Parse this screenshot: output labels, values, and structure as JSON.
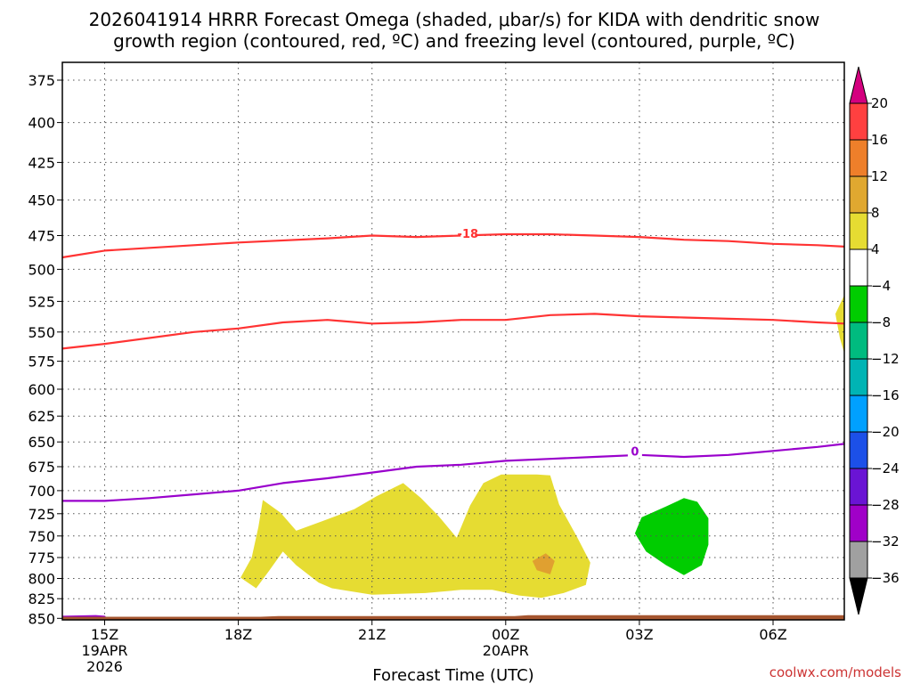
{
  "title_line1": "2026041914 HRRR Forecast Omega (shaded, μbar/s) for KIDA with dendritic snow",
  "title_line2": "growth region (contoured, red, ºC) and freezing level (contoured, purple, ºC)",
  "credit": "coolwx.com/models",
  "chart_data": {
    "type": "time-height contour",
    "xlabel": "Forecast Time (UTC)",
    "x_range_hours": [
      -0.95,
      16.6
    ],
    "y_range_hPa": [
      852,
      365
    ],
    "y_ticks": [
      375,
      400,
      425,
      450,
      475,
      500,
      525,
      550,
      575,
      600,
      625,
      650,
      675,
      700,
      725,
      750,
      775,
      800,
      825,
      850
    ],
    "x_ticks": [
      {
        "hour": 0,
        "lines": [
          "15Z",
          "19APR",
          "2026"
        ]
      },
      {
        "hour": 3,
        "lines": [
          "18Z"
        ]
      },
      {
        "hour": 6,
        "lines": [
          "21Z"
        ]
      },
      {
        "hour": 9,
        "lines": [
          "00Z",
          "20APR"
        ]
      },
      {
        "hour": 12,
        "lines": [
          "03Z"
        ]
      },
      {
        "hour": 15,
        "lines": [
          "06Z"
        ]
      }
    ],
    "contours": [
      {
        "label": "-18",
        "label_at": [
          8.15,
          474
        ],
        "color": "#ff3333",
        "points": [
          [
            -0.95,
            491
          ],
          [
            0,
            486
          ],
          [
            2,
            482
          ],
          [
            3,
            480
          ],
          [
            5,
            477
          ],
          [
            6,
            475
          ],
          [
            7,
            476
          ],
          [
            8,
            475
          ],
          [
            9,
            474
          ],
          [
            10,
            474
          ],
          [
            11,
            475
          ],
          [
            12,
            476
          ],
          [
            13,
            478
          ],
          [
            14,
            479
          ],
          [
            15,
            481
          ],
          [
            16,
            482
          ],
          [
            16.6,
            483
          ]
        ]
      },
      {
        "label": "",
        "color": "#ff3333",
        "points": [
          [
            -0.95,
            564
          ],
          [
            0,
            560
          ],
          [
            1,
            555
          ],
          [
            2,
            550
          ],
          [
            3,
            547
          ],
          [
            4,
            542
          ],
          [
            5,
            540
          ],
          [
            6,
            543
          ],
          [
            7,
            542
          ],
          [
            8,
            540
          ],
          [
            9,
            540
          ],
          [
            10,
            536
          ],
          [
            11,
            535
          ],
          [
            12,
            537
          ],
          [
            13,
            538
          ],
          [
            14,
            539
          ],
          [
            15,
            540
          ],
          [
            16,
            542
          ],
          [
            16.6,
            543
          ]
        ]
      },
      {
        "label": "0",
        "label_at": [
          11.9,
          660
        ],
        "color": "#9900cc",
        "points": [
          [
            -0.95,
            711
          ],
          [
            0,
            711
          ],
          [
            1,
            708
          ],
          [
            2,
            704
          ],
          [
            3,
            700
          ],
          [
            4,
            692
          ],
          [
            5,
            687
          ],
          [
            6,
            681
          ],
          [
            7,
            675
          ],
          [
            8,
            673
          ],
          [
            9,
            669
          ],
          [
            10,
            667
          ],
          [
            11,
            665
          ],
          [
            12,
            663
          ],
          [
            13,
            665
          ],
          [
            14,
            663
          ],
          [
            15,
            659
          ],
          [
            16,
            655
          ],
          [
            16.6,
            652
          ]
        ]
      },
      {
        "label": "",
        "color": "#9900cc",
        "points": [
          [
            -0.95,
            848
          ],
          [
            -0.2,
            847
          ],
          [
            0,
            848
          ],
          [
            -0.2,
            851
          ]
        ]
      }
    ],
    "shaded_regions": [
      {
        "omega": "4 to 8",
        "color": "#e6dc32",
        "points": [
          [
            3.55,
            710
          ],
          [
            3.95,
            724
          ],
          [
            4.3,
            744
          ],
          [
            4.9,
            733
          ],
          [
            5.6,
            720
          ],
          [
            6.1,
            706
          ],
          [
            6.7,
            692
          ],
          [
            7.1,
            708
          ],
          [
            7.5,
            728
          ],
          [
            7.9,
            752
          ],
          [
            8.2,
            716
          ],
          [
            8.5,
            692
          ],
          [
            8.9,
            683
          ],
          [
            9.7,
            683
          ],
          [
            10.0,
            684
          ],
          [
            10.2,
            715
          ],
          [
            10.6,
            751
          ],
          [
            10.9,
            781
          ],
          [
            10.8,
            808
          ],
          [
            10.3,
            818
          ],
          [
            9.8,
            824
          ],
          [
            9.3,
            821
          ],
          [
            8.7,
            814
          ],
          [
            8.0,
            814
          ],
          [
            7.2,
            818
          ],
          [
            6.0,
            820
          ],
          [
            5.1,
            812
          ],
          [
            4.8,
            805
          ],
          [
            4.3,
            784
          ],
          [
            4.0,
            768
          ],
          [
            3.7,
            790
          ],
          [
            3.4,
            812
          ],
          [
            3.05,
            799
          ],
          [
            3.3,
            775
          ],
          [
            3.45,
            740
          ]
        ]
      },
      {
        "omega": "12 to 16",
        "color": "#e0a030",
        "points": [
          [
            9.6,
            779
          ],
          [
            9.9,
            770
          ],
          [
            10.1,
            779
          ],
          [
            10.0,
            795
          ],
          [
            9.7,
            790
          ]
        ]
      },
      {
        "omega": "4 to 8",
        "color": "#e6dc32",
        "points": [
          [
            16.6,
            520
          ],
          [
            16.4,
            535
          ],
          [
            16.5,
            555
          ],
          [
            16.6,
            568
          ]
        ]
      },
      {
        "omega": "-8 to -4",
        "color": "#00cc00",
        "points": [
          [
            12.05,
            729
          ],
          [
            12.6,
            717
          ],
          [
            13.0,
            708
          ],
          [
            13.3,
            712
          ],
          [
            13.55,
            730
          ],
          [
            13.55,
            760
          ],
          [
            13.4,
            784
          ],
          [
            13.0,
            796
          ],
          [
            12.6,
            784
          ],
          [
            12.15,
            768
          ],
          [
            11.9,
            747
          ]
        ]
      }
    ],
    "terrain": {
      "color": "#a5552f",
      "top_hPa": [
        [
          -0.95,
          848
        ],
        [
          3.5,
          848
        ],
        [
          3.9,
          847
        ],
        [
          9.2,
          847
        ],
        [
          9.5,
          846
        ],
        [
          16.6,
          846
        ]
      ]
    },
    "colorbar": {
      "bins": [
        {
          "color": "#d4007f",
          "shape": "triangle-top"
        },
        {
          "color": "#ff4040"
        },
        {
          "color": "#ee7f2a"
        },
        {
          "color": "#e0a830"
        },
        {
          "color": "#e6dc32"
        },
        {
          "color": "#ffffff"
        },
        {
          "color": "#00cc00"
        },
        {
          "color": "#00bb7f"
        },
        {
          "color": "#00b4b4"
        },
        {
          "color": "#00a0ff"
        },
        {
          "color": "#1c50e8"
        },
        {
          "color": "#6a14d4"
        },
        {
          "color": "#a000c8"
        },
        {
          "color": "#a0a0a0"
        },
        {
          "color": "#000000",
          "shape": "triangle-bottom"
        }
      ],
      "labels": [
        "20",
        "16",
        "12",
        "8",
        "4",
        "−4",
        "−8",
        "−12",
        "−16",
        "−20",
        "−24",
        "−28",
        "−32",
        "−36"
      ]
    }
  }
}
